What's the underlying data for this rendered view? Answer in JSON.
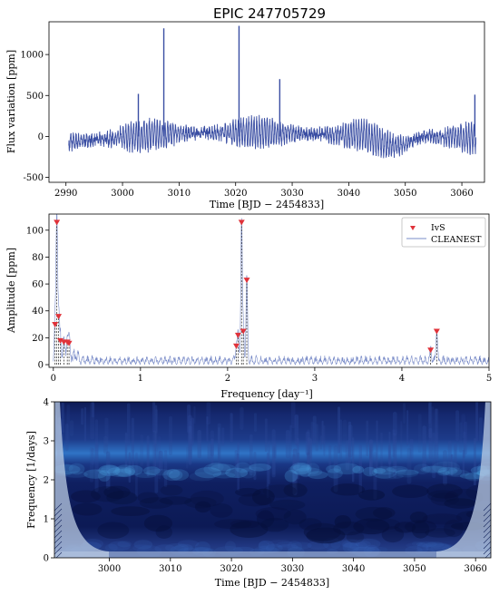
{
  "title": "EPIC 247705729",
  "colors": {
    "series": "#3a4ea3",
    "peak": "#e0323a",
    "wavelet_bg": "#0b1b58"
  },
  "chart_data": [
    {
      "type": "line",
      "name": "light-curve",
      "xlabel": "Time [BJD − 2454833]",
      "ylabel": "Flux variation [ppm]",
      "xlim": [
        2987,
        3064
      ],
      "ylim": [
        -560,
        1400
      ],
      "xticks": [
        2990,
        3000,
        3010,
        3020,
        3030,
        3040,
        3050,
        3060
      ],
      "yticks": [
        -500,
        0,
        500,
        1000
      ],
      "spikes": [
        {
          "x": 3002.8,
          "y": 520
        },
        {
          "x": 3007.3,
          "y": 1320
        },
        {
          "x": 3020.6,
          "y": 1350
        },
        {
          "x": 3027.8,
          "y": 700
        },
        {
          "x": 3062.3,
          "y": 510
        }
      ],
      "time_range": [
        2990.5,
        3062.5
      ]
    },
    {
      "type": "line",
      "name": "periodogram",
      "xlabel": "Frequency [day⁻¹]",
      "ylabel": "Amplitude [ppm]",
      "xlim": [
        -0.05,
        5
      ],
      "ylim": [
        -2,
        112
      ],
      "xticks": [
        0,
        1,
        2,
        3,
        4,
        5
      ],
      "yticks": [
        0,
        20,
        40,
        60,
        80,
        100
      ],
      "legend": {
        "position": "top-right",
        "entries": [
          "IvS",
          "CLEANEST"
        ]
      },
      "peaks": [
        {
          "x": 0.04,
          "y": 105
        },
        {
          "x": 0.02,
          "y": 29
        },
        {
          "x": 0.06,
          "y": 35
        },
        {
          "x": 0.08,
          "y": 17
        },
        {
          "x": 0.12,
          "y": 16
        },
        {
          "x": 0.16,
          "y": 16
        },
        {
          "x": 0.18,
          "y": 15
        },
        {
          "x": 2.16,
          "y": 105
        },
        {
          "x": 2.22,
          "y": 62
        },
        {
          "x": 2.18,
          "y": 24
        },
        {
          "x": 2.12,
          "y": 21
        },
        {
          "x": 2.1,
          "y": 13
        },
        {
          "x": 4.33,
          "y": 10
        },
        {
          "x": 4.4,
          "y": 24
        }
      ]
    },
    {
      "type": "heatmap",
      "name": "wavelet",
      "xlabel": "Time [BJD − 2454833]",
      "ylabel": "Frequency [1/days]",
      "xlim": [
        2991,
        3062.5
      ],
      "ylim": [
        0,
        4
      ],
      "xticks": [
        3000,
        3010,
        3020,
        3030,
        3040,
        3050,
        3060
      ],
      "yticks": [
        0,
        1,
        2,
        3,
        4
      ],
      "bands": [
        {
          "freq": 2.2,
          "strength": 0.85
        },
        {
          "freq": 0.25,
          "strength": 0.55
        }
      ]
    }
  ]
}
